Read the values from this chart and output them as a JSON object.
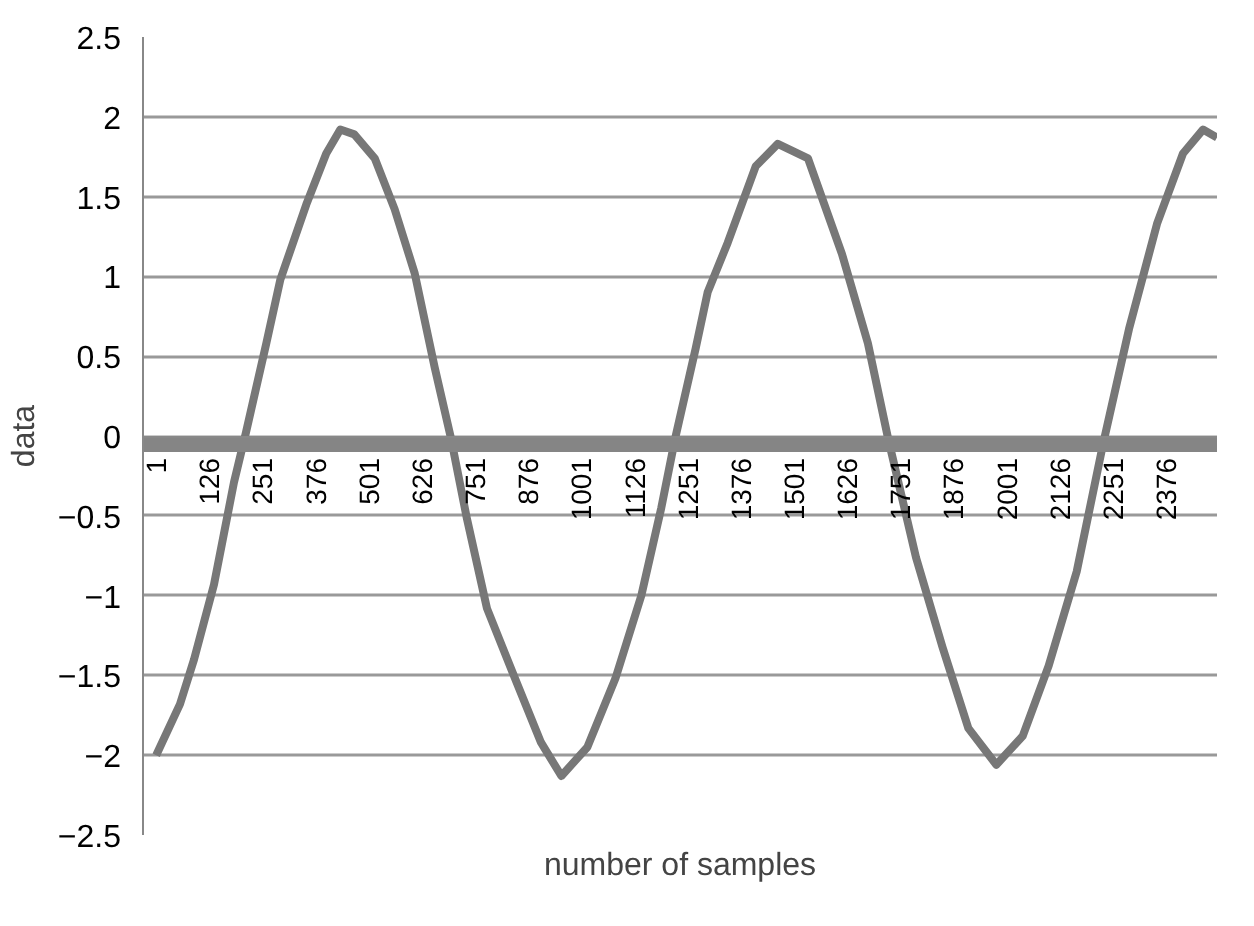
{
  "chart_data": {
    "type": "line",
    "xlabel": "number of samples",
    "ylabel": "data",
    "xlim": [
      -30,
      2496
    ],
    "ylim": [
      -2.5,
      2.5
    ],
    "xticks": [
      1,
      126,
      251,
      376,
      501,
      626,
      751,
      876,
      1001,
      1126,
      1251,
      1376,
      1501,
      1626,
      1751,
      1876,
      2001,
      2126,
      2251,
      2376
    ],
    "yticks": [
      -2.5,
      -2,
      -1.5,
      -1,
      -0.5,
      0,
      0.5,
      1,
      1.5,
      2,
      2.5
    ],
    "grid": "y",
    "marker": "none",
    "line_style": "solid",
    "series": [
      {
        "color": "#777777",
        "x": [
          1,
          57,
          90,
          137,
          184,
          212,
          260,
          293,
          354,
          401,
          434,
          467,
          515,
          562,
          609,
          656,
          694,
          732,
          779,
          845,
          906,
          954,
          1015,
          1081,
          1142,
          1189,
          1222,
          1270,
          1298,
          1345,
          1411,
          1463,
          1534,
          1614,
          1675,
          1722,
          1788,
          1850,
          1911,
          1977,
          2039,
          2100,
          2166,
          2228,
          2289,
          2355,
          2416,
          2463,
          2496
        ],
        "values": [
          -2.0,
          -1.68,
          -1.4,
          -0.93,
          -0.29,
          0.02,
          0.58,
          0.98,
          1.45,
          1.77,
          1.92,
          1.89,
          1.74,
          1.42,
          1.02,
          0.43,
          -0.01,
          -0.52,
          -1.08,
          -1.52,
          -1.92,
          -2.13,
          -1.95,
          -1.52,
          -1.0,
          -0.45,
          -0.01,
          0.55,
          0.9,
          1.21,
          1.69,
          1.83,
          1.74,
          1.14,
          0.58,
          -0.01,
          -0.76,
          -1.32,
          -1.83,
          -2.06,
          -1.88,
          -1.44,
          -0.85,
          -0.05,
          0.67,
          1.33,
          1.77,
          1.92,
          1.87
        ]
      },
      {
        "color": "#858585",
        "x": [
          -30,
          2496
        ],
        "values": [
          -0.05,
          -0.05
        ]
      }
    ]
  }
}
